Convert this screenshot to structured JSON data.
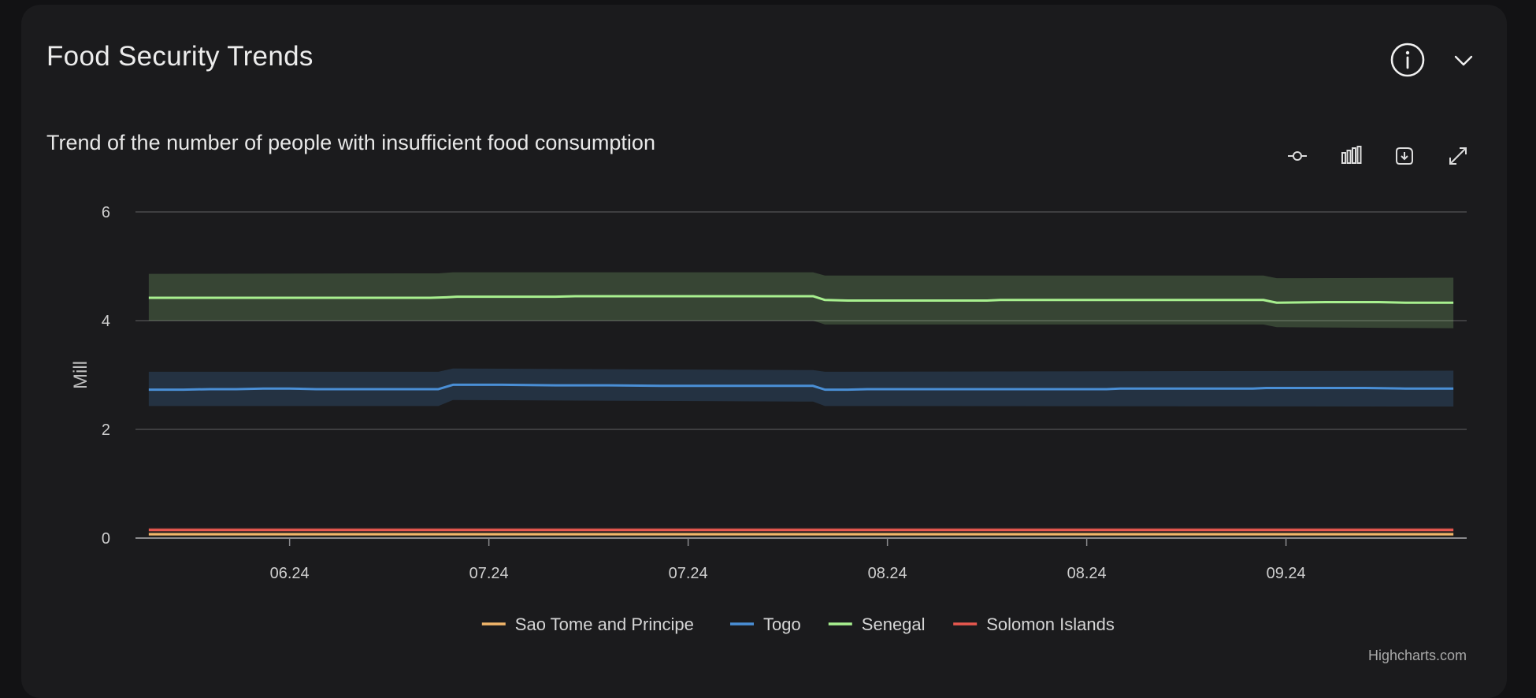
{
  "card": {
    "title": "Food Security Trends",
    "info_icon": "info-icon",
    "collapse_icon": "chevron-down-icon"
  },
  "toolbar": {
    "icons": [
      "line-chart-icon",
      "bar-chart-icon",
      "download-icon",
      "fullscreen-icon"
    ]
  },
  "colors": {
    "background": "#121214",
    "card": "#1b1b1d",
    "grid": "#4a4a4d",
    "sao_tome": "#f2b66a",
    "togo": "#4a8fd6",
    "senegal": "#a8f08f",
    "solomon": "#e8584f"
  },
  "credits": "Highcharts.com",
  "chart_data": {
    "type": "area",
    "title": "Trend of the number of people with insufficient food consumption",
    "ylabel": "Mill",
    "ylim": [
      0,
      6
    ],
    "yticks": [
      0,
      2,
      4,
      6
    ],
    "grid": true,
    "legend_position": "bottom-center",
    "x_ticks": [
      {
        "x": 6,
        "label": "06.24"
      },
      {
        "x": 21,
        "label": "07.24"
      },
      {
        "x": 36,
        "label": "07.24"
      },
      {
        "x": 51,
        "label": "08.24"
      },
      {
        "x": 66,
        "label": "08.24"
      },
      {
        "x": 81,
        "label": "09.24"
      }
    ],
    "x_range": [
      -5.6,
      94.6
    ],
    "series": [
      {
        "name": "Sao Tome and Principe",
        "color": "#f2b66a",
        "points": [
          [
            -4.6,
            0.07
          ],
          [
            93.6,
            0.07
          ]
        ],
        "band": {
          "lower": [
            [
              -4.6,
              0.04
            ],
            [
              93.6,
              0.04
            ]
          ],
          "upper": [
            [
              -4.6,
              0.1
            ],
            [
              93.6,
              0.1
            ]
          ]
        }
      },
      {
        "name": "Togo",
        "color": "#4a8fd6",
        "points": [
          [
            -4.6,
            2.73
          ],
          [
            -2,
            2.73
          ],
          [
            0,
            2.74
          ],
          [
            2,
            2.74
          ],
          [
            4,
            2.75
          ],
          [
            6,
            2.75
          ],
          [
            8,
            2.74
          ],
          [
            12,
            2.74
          ],
          [
            16,
            2.74
          ],
          [
            17.2,
            2.74
          ],
          [
            18.3,
            2.82
          ],
          [
            22,
            2.82
          ],
          [
            26,
            2.81
          ],
          [
            30,
            2.81
          ],
          [
            34,
            2.8
          ],
          [
            38,
            2.8
          ],
          [
            42,
            2.8
          ],
          [
            45.4,
            2.8
          ],
          [
            46.3,
            2.73
          ],
          [
            48,
            2.73
          ],
          [
            49.5,
            2.74
          ],
          [
            53,
            2.74
          ],
          [
            56,
            2.74
          ],
          [
            60,
            2.74
          ],
          [
            64,
            2.74
          ],
          [
            67.5,
            2.74
          ],
          [
            68.5,
            2.75
          ],
          [
            72,
            2.75
          ],
          [
            76,
            2.75
          ],
          [
            78.5,
            2.75
          ],
          [
            79.5,
            2.76
          ],
          [
            83,
            2.76
          ],
          [
            87,
            2.76
          ],
          [
            90,
            2.75
          ],
          [
            93.6,
            2.75
          ]
        ],
        "band": {
          "lower": [
            [
              -4.6,
              2.43
            ],
            [
              17.2,
              2.43
            ],
            [
              18.3,
              2.54
            ],
            [
              45.4,
              2.51
            ],
            [
              46.3,
              2.43
            ],
            [
              93.6,
              2.42
            ]
          ],
          "upper": [
            [
              -4.6,
              3.06
            ],
            [
              17.2,
              3.06
            ],
            [
              18.3,
              3.12
            ],
            [
              45.4,
              3.09
            ],
            [
              46.3,
              3.06
            ],
            [
              93.6,
              3.08
            ]
          ]
        }
      },
      {
        "name": "Senegal",
        "color": "#a8f08f",
        "points": [
          [
            -4.6,
            4.42
          ],
          [
            4,
            4.42
          ],
          [
            12,
            4.42
          ],
          [
            16.6,
            4.42
          ],
          [
            17.8,
            4.43
          ],
          [
            18.6,
            4.44
          ],
          [
            22,
            4.44
          ],
          [
            26,
            4.44
          ],
          [
            27.5,
            4.45
          ],
          [
            32,
            4.45
          ],
          [
            38,
            4.45
          ],
          [
            42,
            4.45
          ],
          [
            45.4,
            4.45
          ],
          [
            46.3,
            4.38
          ],
          [
            48,
            4.37
          ],
          [
            52,
            4.37
          ],
          [
            56,
            4.37
          ],
          [
            58.5,
            4.37
          ],
          [
            59.5,
            4.38
          ],
          [
            63,
            4.38
          ],
          [
            68,
            4.38
          ],
          [
            72,
            4.38
          ],
          [
            76,
            4.38
          ],
          [
            79.3,
            4.38
          ],
          [
            80.3,
            4.33
          ],
          [
            84,
            4.34
          ],
          [
            88,
            4.34
          ],
          [
            90,
            4.33
          ],
          [
            93.6,
            4.33
          ]
        ],
        "band": {
          "lower": [
            [
              -4.6,
              4.0
            ],
            [
              45.4,
              4.0
            ],
            [
              46.3,
              3.93
            ],
            [
              79.3,
              3.93
            ],
            [
              80.3,
              3.88
            ],
            [
              93.6,
              3.86
            ]
          ],
          "upper": [
            [
              -4.6,
              4.86
            ],
            [
              17.2,
              4.87
            ],
            [
              18.3,
              4.89
            ],
            [
              45.4,
              4.89
            ],
            [
              46.3,
              4.83
            ],
            [
              79.3,
              4.83
            ],
            [
              80.3,
              4.78
            ],
            [
              93.6,
              4.79
            ]
          ]
        }
      },
      {
        "name": "Solomon Islands",
        "color": "#e8584f",
        "points": [
          [
            -4.6,
            0.15
          ],
          [
            93.6,
            0.15
          ]
        ],
        "band": {
          "lower": [
            [
              -4.6,
              0.11
            ],
            [
              93.6,
              0.11
            ]
          ],
          "upper": [
            [
              -4.6,
              0.19
            ],
            [
              93.6,
              0.19
            ]
          ]
        }
      }
    ]
  }
}
